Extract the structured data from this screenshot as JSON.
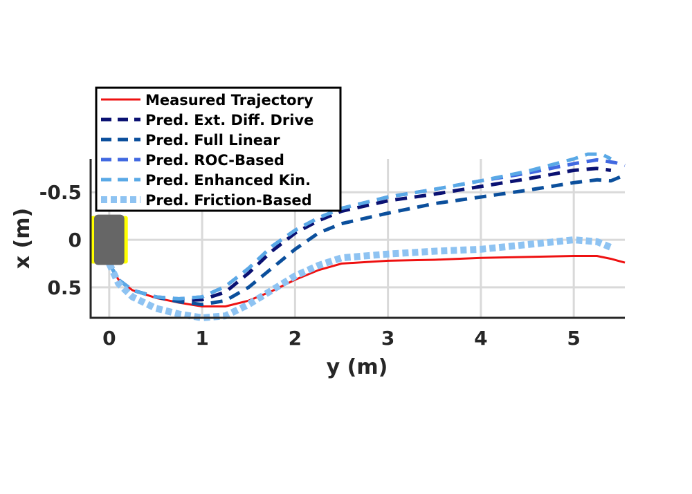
{
  "chart_data": {
    "type": "line",
    "title": "",
    "xlabel": "y (m)",
    "ylabel": "x (m)",
    "xlim": [
      -0.2,
      5.55
    ],
    "ylim": [
      -0.85,
      0.82
    ],
    "y_reversed": true,
    "grid": true,
    "legend_position": "top-left",
    "xticks": [
      0,
      1,
      2,
      3,
      4,
      5
    ],
    "xtick_labels": [
      "0",
      "1",
      "2",
      "3",
      "4",
      "5"
    ],
    "yticks": [
      -0.5,
      0,
      0.5
    ],
    "ytick_labels": [
      "-0.5",
      "0",
      "0.5"
    ],
    "robot_marker": {
      "body_color": "#666666",
      "wheel_color": "#ffff00",
      "x_range": [
        -0.2,
        0.2
      ],
      "y_range": [
        -0.25,
        0.25
      ]
    },
    "series": [
      {
        "name": "Measured Trajectory",
        "color": "#ee1111",
        "style": "solid",
        "x": [
          0.0,
          0.1,
          0.25,
          0.5,
          0.75,
          1.0,
          1.25,
          1.5,
          1.75,
          2.0,
          2.25,
          2.5,
          3.0,
          3.5,
          4.0,
          4.5,
          5.0,
          5.25,
          5.4,
          5.55
        ],
        "y": [
          0.25,
          0.42,
          0.53,
          0.61,
          0.66,
          0.7,
          0.7,
          0.64,
          0.54,
          0.42,
          0.32,
          0.25,
          0.22,
          0.21,
          0.19,
          0.18,
          0.17,
          0.17,
          0.2,
          0.24
        ]
      },
      {
        "name": "Pred. Ext. Diff. Drive",
        "color": "#0a1172",
        "style": "dashed",
        "x": [
          0.0,
          0.1,
          0.25,
          0.5,
          0.75,
          1.0,
          1.25,
          1.5,
          1.75,
          2.0,
          2.25,
          2.5,
          3.0,
          3.5,
          4.0,
          4.5,
          5.0,
          5.25,
          5.4
        ],
        "y": [
          0.25,
          0.42,
          0.53,
          0.6,
          0.64,
          0.63,
          0.55,
          0.35,
          0.12,
          -0.07,
          -0.2,
          -0.3,
          -0.41,
          -0.48,
          -0.56,
          -0.64,
          -0.73,
          -0.75,
          -0.73
        ]
      },
      {
        "name": "Pred. Full Linear",
        "color": "#0b4f9c",
        "style": "dashed",
        "x": [
          0.0,
          0.1,
          0.25,
          0.5,
          0.75,
          1.0,
          1.25,
          1.5,
          1.75,
          2.0,
          2.25,
          2.5,
          3.0,
          3.5,
          4.0,
          4.5,
          5.0,
          5.25,
          5.4,
          5.55
        ],
        "y": [
          0.25,
          0.42,
          0.53,
          0.6,
          0.65,
          0.68,
          0.64,
          0.5,
          0.3,
          0.1,
          -0.07,
          -0.17,
          -0.28,
          -0.38,
          -0.45,
          -0.52,
          -0.6,
          -0.63,
          -0.62,
          -0.68
        ]
      },
      {
        "name": "Pred. ROC-Based",
        "color": "#4169e1",
        "style": "dashed",
        "x": [
          0.0,
          0.1,
          0.25,
          0.5,
          0.75,
          1.0,
          1.25,
          1.5,
          1.75,
          2.0,
          2.25,
          2.5,
          3.0,
          3.5,
          4.0,
          4.5,
          5.0,
          5.25,
          5.45,
          5.55
        ],
        "y": [
          0.25,
          0.42,
          0.53,
          0.6,
          0.62,
          0.6,
          0.49,
          0.3,
          0.07,
          -0.1,
          -0.23,
          -0.33,
          -0.45,
          -0.53,
          -0.62,
          -0.7,
          -0.8,
          -0.84,
          -0.81,
          -0.78
        ]
      },
      {
        "name": "Pred. Enhanced Kin.",
        "color": "#5aa9e6",
        "style": "dashed",
        "x": [
          0.0,
          0.1,
          0.25,
          0.5,
          0.75,
          1.0,
          1.25,
          1.5,
          1.75,
          2.0,
          2.25,
          2.5,
          3.0,
          3.5,
          4.0,
          4.5,
          5.0,
          5.15,
          5.3,
          5.4
        ],
        "y": [
          0.25,
          0.42,
          0.53,
          0.6,
          0.62,
          0.6,
          0.49,
          0.3,
          0.07,
          -0.1,
          -0.23,
          -0.33,
          -0.45,
          -0.53,
          -0.62,
          -0.72,
          -0.85,
          -0.9,
          -0.9,
          -0.85
        ]
      },
      {
        "name": "Pred. Friction-Based",
        "color": "#8ec3f2",
        "style": "dotted",
        "x": [
          0.0,
          0.1,
          0.25,
          0.5,
          0.75,
          1.0,
          1.25,
          1.5,
          1.75,
          2.0,
          2.25,
          2.5,
          3.0,
          3.5,
          4.0,
          4.5,
          5.0,
          5.25,
          5.4
        ],
        "y": [
          0.25,
          0.46,
          0.6,
          0.72,
          0.78,
          0.82,
          0.8,
          0.68,
          0.53,
          0.38,
          0.27,
          0.19,
          0.15,
          0.12,
          0.1,
          0.05,
          0.0,
          0.02,
          0.08
        ]
      }
    ]
  }
}
